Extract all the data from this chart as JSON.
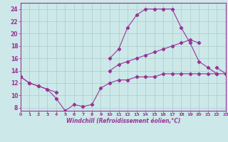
{
  "x": [
    0,
    1,
    2,
    3,
    4,
    5,
    6,
    7,
    8,
    9,
    10,
    11,
    12,
    13,
    14,
    15,
    16,
    17,
    18,
    19,
    20,
    21,
    22,
    23
  ],
  "line_top": [
    13,
    12,
    11.5,
    11,
    10.5,
    null,
    null,
    null,
    null,
    null,
    16,
    17.5,
    21,
    23,
    24,
    24,
    24,
    24,
    21,
    18.5,
    15.5,
    14.5,
    13.5,
    null
  ],
  "line_mid": [
    13,
    null,
    null,
    null,
    null,
    null,
    null,
    null,
    null,
    null,
    14,
    15,
    15.5,
    16,
    16.5,
    17,
    17.5,
    18,
    18.5,
    19,
    18.5,
    null,
    14.5,
    13.5
  ],
  "line_bot": [
    13,
    12,
    11.5,
    11,
    9.5,
    7.5,
    8.5,
    8.2,
    8.5,
    11.2,
    12,
    12.5,
    12.5,
    13,
    13,
    13,
    13.5,
    13.5,
    13.5,
    13.5,
    13.5,
    13.5,
    13.5,
    13.5
  ],
  "color": "#993399",
  "bg_color": "#cce8e8",
  "grid_color": "#aacccc",
  "xlabel": "Windchill (Refroidissement éolien,°C)",
  "xlim": [
    0,
    23
  ],
  "ylim": [
    7.5,
    25.0
  ],
  "yticks": [
    8,
    10,
    12,
    14,
    16,
    18,
    20,
    22,
    24
  ],
  "xticks": [
    0,
    1,
    2,
    3,
    4,
    5,
    6,
    7,
    8,
    9,
    10,
    11,
    12,
    13,
    14,
    15,
    16,
    17,
    18,
    19,
    20,
    21,
    22,
    23
  ]
}
